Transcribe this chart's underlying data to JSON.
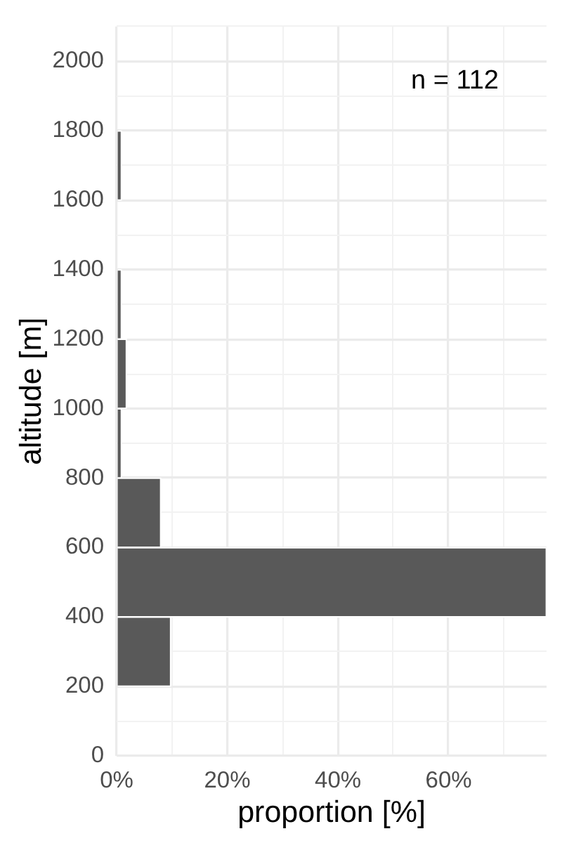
{
  "chart_data": {
    "type": "histogram",
    "orientation": "horizontal",
    "bins": [
      200,
      400,
      600,
      800,
      1000,
      1200,
      1400,
      1600,
      1800
    ],
    "values": [
      9.8,
      77.7,
      8.0,
      0.9,
      1.8,
      0.9,
      0,
      0.9
    ],
    "color": "#595959",
    "xlabel": "proportion [%]",
    "ylabel": "altitude [m]",
    "xlim": [
      0,
      77.7
    ],
    "xticks": [
      {
        "value": 0,
        "label": "0%"
      },
      {
        "value": 10,
        "label": null
      },
      {
        "value": 20,
        "label": "20%"
      },
      {
        "value": 30,
        "label": null
      },
      {
        "value": 40,
        "label": "40%"
      },
      {
        "value": 50,
        "label": null
      },
      {
        "value": 60,
        "label": "60%"
      },
      {
        "value": 70,
        "label": null
      }
    ],
    "ylim": [
      0,
      2100
    ],
    "yticks": [
      0,
      {
        "value": 100,
        "label": null
      },
      200,
      {
        "value": 300,
        "label": null
      },
      400,
      {
        "value": 500,
        "label": null
      },
      600,
      {
        "value": 700,
        "label": null
      },
      800,
      {
        "value": 900,
        "label": null
      },
      1000,
      {
        "value": 1100,
        "label": null
      },
      1200,
      {
        "value": 1300,
        "label": null
      },
      1400,
      {
        "value": 1500,
        "label": null
      },
      1600,
      {
        "value": 1700,
        "label": null
      },
      1800,
      {
        "value": 1900,
        "label": null
      },
      2000,
      {
        "value": 2100,
        "label": null
      }
    ],
    "grid": true,
    "annotations": [
      "n = 112"
    ]
  }
}
